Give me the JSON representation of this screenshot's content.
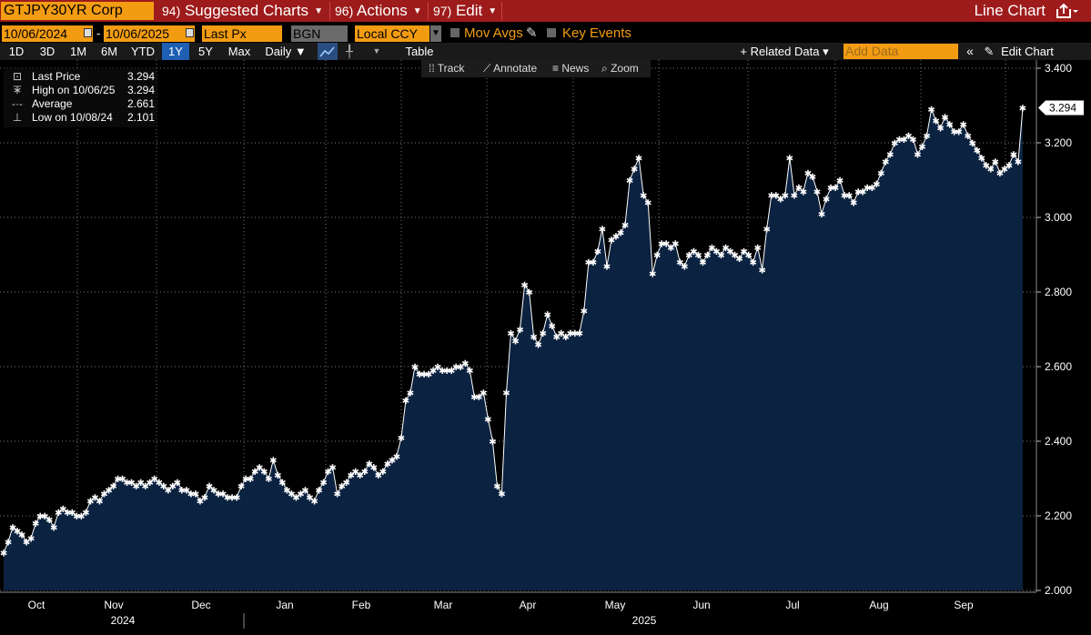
{
  "toolbar": {
    "ticker": "GTJPY30YR Corp",
    "menu": [
      {
        "num": "94)",
        "label": "Suggested Charts"
      },
      {
        "num": "96)",
        "label": "Actions"
      },
      {
        "num": "97)",
        "label": "Edit"
      }
    ],
    "chart_type": "Line Chart"
  },
  "controls": {
    "start_date": "10/06/2024",
    "dash": "-",
    "end_date": "10/06/2025",
    "field": "Last Px",
    "source": "BGN",
    "currency": "Local CCY",
    "mov_avgs": "Mov Avgs",
    "key_events": "Key Events"
  },
  "ranges": [
    "1D",
    "3D",
    "1M",
    "6M",
    "YTD",
    "1Y",
    "5Y",
    "Max"
  ],
  "selected_range": "1Y",
  "frequency": "Daily ▼",
  "table_label": "Table",
  "related_data": "+ Related Data ▾",
  "add_data_placeholder": "Add Data",
  "edit_chart": "Edit Chart",
  "tools": [
    "Track",
    "Annotate",
    "News",
    "Zoom"
  ],
  "legend": [
    {
      "name": "Last Price",
      "value": "3.294",
      "icon": "asterisk-icon"
    },
    {
      "name": "High on 10/06/25",
      "value": "3.294",
      "icon": "high-marker-icon"
    },
    {
      "name": "Average",
      "value": "2.661",
      "icon": "average-line-icon"
    },
    {
      "name": "Low on 10/08/24",
      "value": "2.101",
      "icon": "low-marker-icon"
    }
  ],
  "last_label": "3.294",
  "colors": {
    "fill": "#0b2240",
    "line": "#ffffff",
    "accent": "#f39c12",
    "topbar": "#9e1b1b",
    "selected": "#1e5fb4"
  },
  "chart_data": {
    "type": "area",
    "ylim": [
      2.0,
      3.4
    ],
    "yticks": [
      "2.000",
      "2.200",
      "2.400",
      "2.600",
      "2.800",
      "3.000",
      "3.200",
      "3.400"
    ],
    "months": [
      "Oct",
      "Nov",
      "Dec",
      "Jan",
      "Feb",
      "Mar",
      "Apr",
      "May",
      "Jun",
      "Jul",
      "Aug",
      "Sep"
    ],
    "years": [
      "2024",
      "2025"
    ],
    "grid": true,
    "series": [
      {
        "name": "Last Price",
        "values": [
          2.101,
          2.13,
          2.17,
          2.16,
          2.15,
          2.13,
          2.14,
          2.18,
          2.2,
          2.2,
          2.19,
          2.17,
          2.21,
          2.22,
          2.21,
          2.21,
          2.2,
          2.2,
          2.21,
          2.24,
          2.25,
          2.24,
          2.26,
          2.27,
          2.28,
          2.3,
          2.3,
          2.29,
          2.29,
          2.28,
          2.29,
          2.28,
          2.29,
          2.3,
          2.29,
          2.28,
          2.27,
          2.28,
          2.29,
          2.27,
          2.27,
          2.26,
          2.26,
          2.24,
          2.25,
          2.28,
          2.27,
          2.26,
          2.26,
          2.25,
          2.25,
          2.25,
          2.28,
          2.3,
          2.3,
          2.32,
          2.33,
          2.32,
          2.3,
          2.35,
          2.31,
          2.29,
          2.27,
          2.26,
          2.25,
          2.26,
          2.27,
          2.25,
          2.24,
          2.27,
          2.29,
          2.32,
          2.33,
          2.26,
          2.28,
          2.29,
          2.31,
          2.32,
          2.31,
          2.32,
          2.34,
          2.33,
          2.31,
          2.32,
          2.34,
          2.35,
          2.36,
          2.41,
          2.51,
          2.53,
          2.6,
          2.58,
          2.58,
          2.58,
          2.59,
          2.6,
          2.59,
          2.59,
          2.59,
          2.6,
          2.6,
          2.61,
          2.59,
          2.52,
          2.52,
          2.53,
          2.46,
          2.4,
          2.28,
          2.26,
          2.53,
          2.69,
          2.67,
          2.7,
          2.82,
          2.8,
          2.68,
          2.66,
          2.69,
          2.74,
          2.71,
          2.68,
          2.69,
          2.68,
          2.69,
          2.69,
          2.69,
          2.75,
          2.88,
          2.88,
          2.91,
          2.97,
          2.87,
          2.94,
          2.95,
          2.96,
          2.98,
          3.1,
          3.13,
          3.16,
          3.06,
          3.04,
          2.85,
          2.9,
          2.93,
          2.93,
          2.92,
          2.93,
          2.88,
          2.87,
          2.9,
          2.91,
          2.9,
          2.88,
          2.9,
          2.92,
          2.91,
          2.9,
          2.92,
          2.91,
          2.9,
          2.89,
          2.91,
          2.9,
          2.88,
          2.92,
          2.86,
          2.97,
          3.06,
          3.06,
          3.05,
          3.06,
          3.16,
          3.06,
          3.08,
          3.07,
          3.12,
          3.11,
          3.07,
          3.01,
          3.05,
          3.08,
          3.08,
          3.1,
          3.06,
          3.06,
          3.04,
          3.07,
          3.07,
          3.08,
          3.08,
          3.09,
          3.12,
          3.15,
          3.17,
          3.2,
          3.21,
          3.21,
          3.22,
          3.21,
          3.17,
          3.19,
          3.22,
          3.29,
          3.26,
          3.24,
          3.27,
          3.25,
          3.23,
          3.23,
          3.25,
          3.22,
          3.2,
          3.18,
          3.16,
          3.14,
          3.13,
          3.15,
          3.12,
          3.13,
          3.14,
          3.17,
          3.15,
          3.294
        ]
      }
    ]
  }
}
